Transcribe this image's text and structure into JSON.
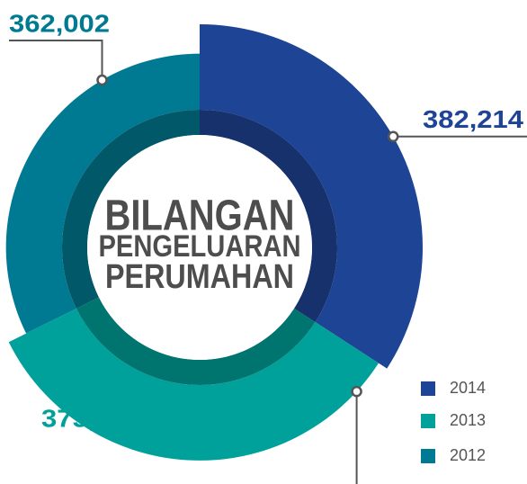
{
  "chart_data": {
    "type": "pie",
    "title": [
      "BILANGAN",
      "PENGELUARAN",
      "PERUMAHAN"
    ],
    "categories": [
      "2014",
      "2013",
      "2012"
    ],
    "values": [
      382214,
      375563,
      362002
    ],
    "value_labels": [
      "382,214",
      "375,563",
      "362,002"
    ],
    "colors": [
      "#1e4495",
      "#00a19a",
      "#007a92"
    ],
    "legend": "bottom-right"
  }
}
